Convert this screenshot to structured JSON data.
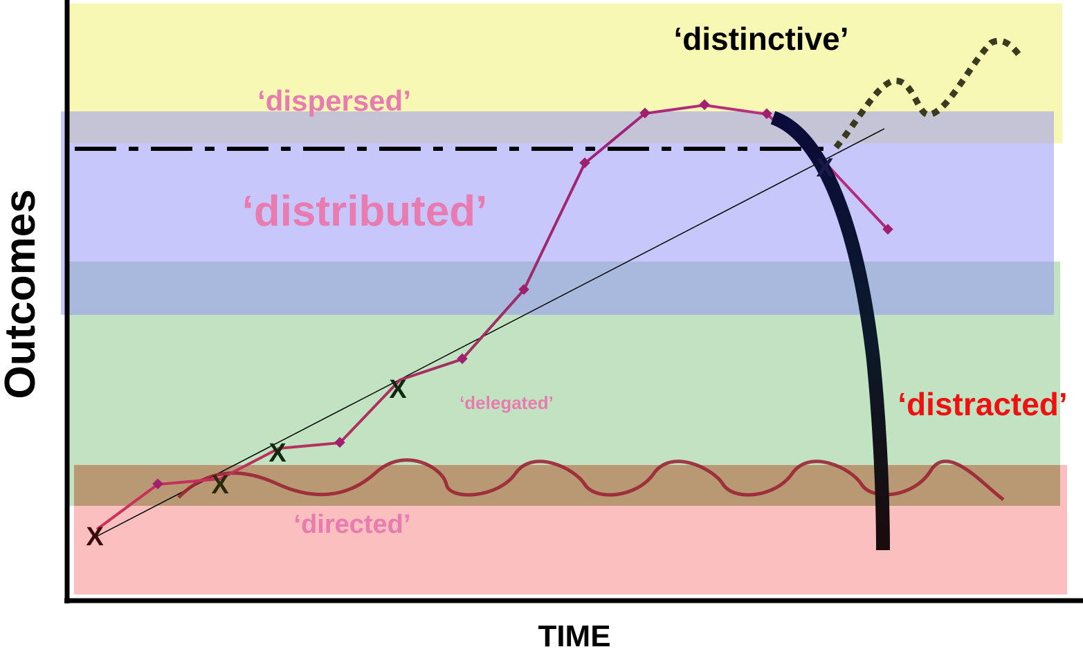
{
  "axes": {
    "y_label": "Outcomes",
    "x_label": "TIME"
  },
  "zones": {
    "dispersed": "‘dispersed’",
    "distributed": "‘distributed’",
    "delegated": "‘delegated’",
    "directed": "‘directed’",
    "distinctive": "‘distinctive’",
    "distracted": "‘distracted’"
  },
  "colors": {
    "zone_yellow": "#f7f7a8",
    "zone_blue": "#8f8ff7",
    "zone_green": "#8fcc8f",
    "zone_red": "#f98a8a",
    "zone_brown": "#8a7a3a",
    "label_pink": "#e87cb0",
    "label_red": "#ee1111",
    "label_black": "#000000",
    "trajectory": "#a0207a",
    "wave": "#9b2535",
    "falling_curve": "#0b0b2a",
    "dotted_wave": "#3a3a1e",
    "marker_x": "#0f2a0f"
  },
  "markers": {
    "x": "X"
  }
}
